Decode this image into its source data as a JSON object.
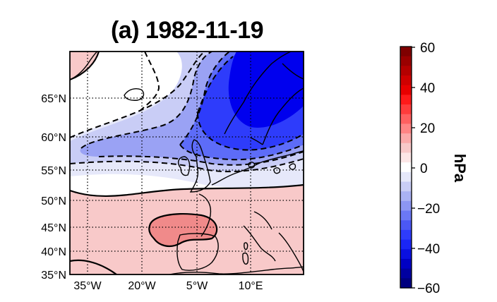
{
  "title": "(a) 1982-11-19",
  "map": {
    "lat_ticks": [
      "65°N",
      "60°N",
      "55°N",
      "50°N",
      "45°N",
      "40°N",
      "35°N"
    ],
    "lon_ticks": [
      "35°W",
      "20°W",
      "5°W",
      "10°E"
    ],
    "fill_colors": {
      "strong_neg": "#0000ee",
      "neg_40": "#2e3cfb",
      "neg_30": "#5d6cf8",
      "neg_20": "#9aa2f4",
      "neg_10": "#c9cdf6",
      "neg_5": "#e6e8fa",
      "near_zero": "#ffffff",
      "pos_5": "#f8c9c9",
      "pos_15": "#f08a8a"
    }
  },
  "colorbar": {
    "unit": "hPa",
    "ticks": [
      "60",
      "40",
      "20",
      "0",
      "−20",
      "−40",
      "−60"
    ],
    "min": -60,
    "max": 60,
    "colors_top_to_bottom": [
      "#7f0000",
      "#9a0000",
      "#b40000",
      "#cf0000",
      "#e80000",
      "#ff1a1a",
      "#ff3c3c",
      "#ff6060",
      "#ff8585",
      "#fbaaaa",
      "#f8c9c9",
      "#fce6e6",
      "#ffffff",
      "#e6e8fa",
      "#c9cdf6",
      "#aab2f4",
      "#8c96f3",
      "#6b78f4",
      "#4b58f4",
      "#2e3cfb",
      "#1a26f5",
      "#0a10e0",
      "#0000c4",
      "#0000a0",
      "#000080"
    ]
  }
}
